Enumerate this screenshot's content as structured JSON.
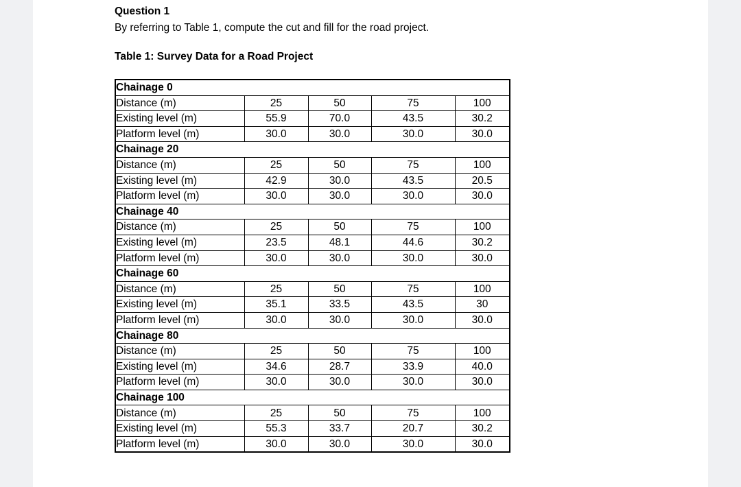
{
  "page": {
    "margin_color": "#f0f1f3",
    "paper_color": "#ffffff",
    "text_color": "#000000"
  },
  "question": {
    "title": "Question 1",
    "body": "By referring to Table 1, compute the cut and fill for the road project."
  },
  "table": {
    "caption": "Table 1: Survey Data for a Road Project",
    "row_labels": [
      "Distance (m)",
      "Existing level (m)",
      "Platform level (m)"
    ],
    "sections": [
      {
        "chainage": "Chainage 0",
        "distance": [
          "25",
          "50",
          "75",
          "100"
        ],
        "existing": [
          "55.9",
          "70.0",
          "43.5",
          "30.2"
        ],
        "platform": [
          "30.0",
          "30.0",
          "30.0",
          "30.0"
        ]
      },
      {
        "chainage": "Chainage 20",
        "distance": [
          "25",
          "50",
          "75",
          "100"
        ],
        "existing": [
          "42.9",
          "30.0",
          "43.5",
          "20.5"
        ],
        "platform": [
          "30.0",
          "30.0",
          "30.0",
          "30.0"
        ]
      },
      {
        "chainage": "Chainage 40",
        "distance": [
          "25",
          "50",
          "75",
          "100"
        ],
        "existing": [
          "23.5",
          "48.1",
          "44.6",
          "30.2"
        ],
        "platform": [
          "30.0",
          "30.0",
          "30.0",
          "30.0"
        ]
      },
      {
        "chainage": "Chainage 60",
        "distance": [
          "25",
          "50",
          "75",
          "100"
        ],
        "existing": [
          "35.1",
          "33.5",
          "43.5",
          "30"
        ],
        "platform": [
          "30.0",
          "30.0",
          "30.0",
          "30.0"
        ]
      },
      {
        "chainage": "Chainage 80",
        "distance": [
          "25",
          "50",
          "75",
          "100"
        ],
        "existing": [
          "34.6",
          "28.7",
          "33.9",
          "40.0"
        ],
        "platform": [
          "30.0",
          "30.0",
          "30.0",
          "30.0"
        ]
      },
      {
        "chainage": "Chainage 100",
        "distance": [
          "25",
          "50",
          "75",
          "100"
        ],
        "existing": [
          "55.3",
          "33.7",
          "20.7",
          "30.2"
        ],
        "platform": [
          "30.0",
          "30.0",
          "30.0",
          "30.0"
        ]
      }
    ]
  }
}
